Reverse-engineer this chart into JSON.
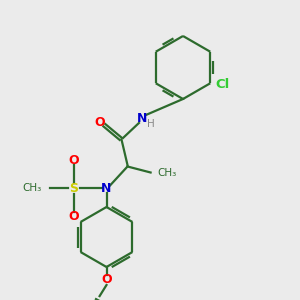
{
  "background_color": "#ebebeb",
  "bond_color": "#2d6b2d",
  "atom_colors": {
    "N": "#0000cc",
    "O": "#ff0000",
    "S": "#cccc00",
    "Cl": "#33cc33",
    "H": "#888888",
    "C": "#2d6b2d"
  },
  "figsize": [
    3.0,
    3.0
  ],
  "dpi": 100
}
